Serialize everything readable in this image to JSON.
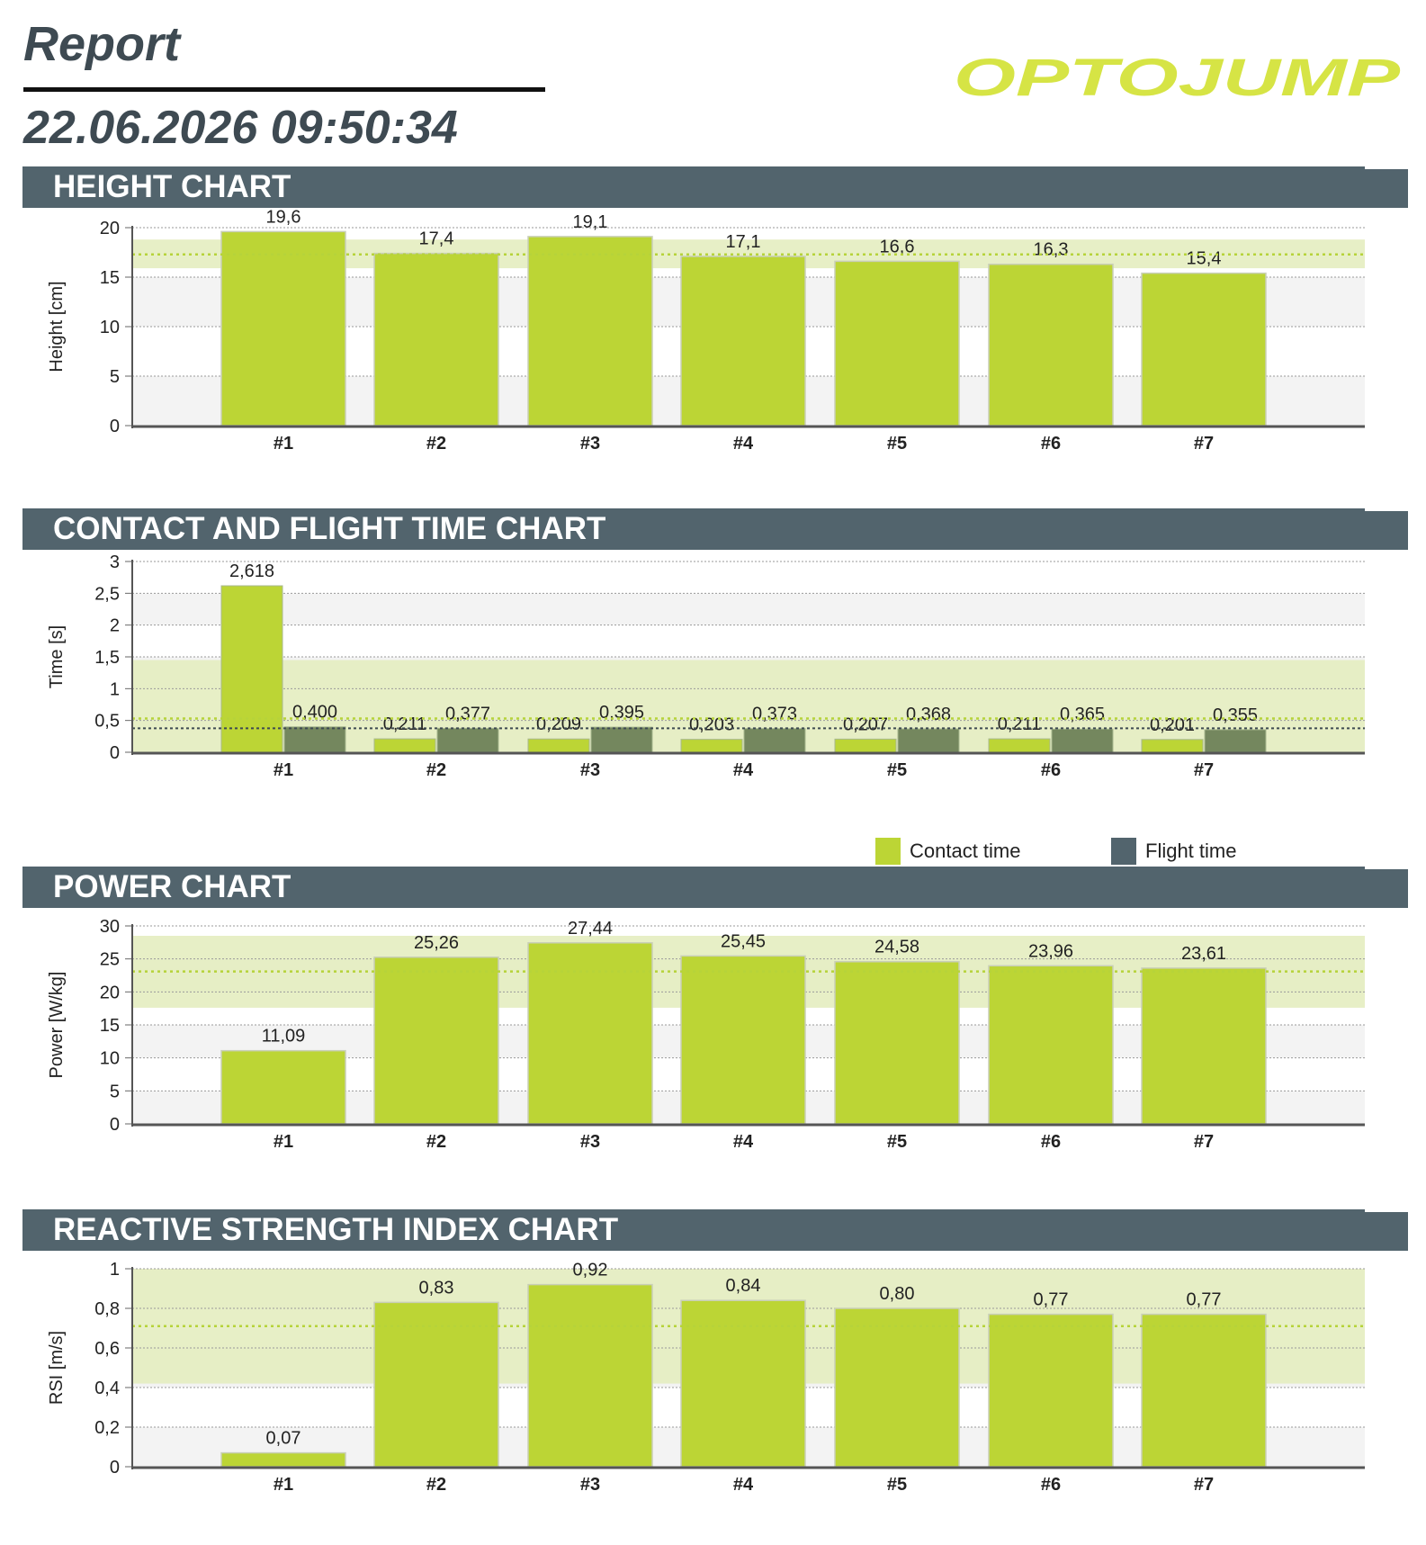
{
  "header": {
    "title": "Report",
    "date": "22.06.2026 09:50:34",
    "logo_text": "OPTOJUMP"
  },
  "colors": {
    "section_bar": "#52646d",
    "contact": "#bcd535",
    "flight": "#74875e",
    "band": "#e4edc0",
    "band_line": "#b6d33a",
    "logo": "#d6e445"
  },
  "sections": [
    {
      "title": "HEIGHT CHART"
    },
    {
      "title": "CONTACT AND FLIGHT TIME CHART"
    },
    {
      "title": "POWER CHART"
    },
    {
      "title": "REACTIVE STRENGTH INDEX CHART"
    }
  ],
  "legend": {
    "contact": "Contact time",
    "flight": "Flight time"
  },
  "chart_data": [
    {
      "type": "bar",
      "title": "HEIGHT CHART",
      "ylabel": "Height [cm]",
      "categories": [
        "#1",
        "#2",
        "#3",
        "#4",
        "#5",
        "#6",
        "#7"
      ],
      "values": [
        19.6,
        17.4,
        19.1,
        17.1,
        16.6,
        16.3,
        15.4
      ],
      "value_labels": [
        "19,6",
        "17,4",
        "19,1",
        "17,1",
        "16,6",
        "16,3",
        "15,4"
      ],
      "yticks": [
        0,
        5,
        10,
        15,
        20
      ],
      "ytick_labels": [
        "0",
        "5",
        "10",
        "15",
        "20"
      ],
      "ylim": [
        0,
        20
      ],
      "band": [
        15.9,
        18.8
      ],
      "band_mean": 17.3,
      "grid": true
    },
    {
      "type": "bar",
      "title": "CONTACT AND FLIGHT TIME CHART",
      "ylabel": "Time [s]",
      "categories": [
        "#1",
        "#2",
        "#3",
        "#4",
        "#5",
        "#6",
        "#7"
      ],
      "series": [
        {
          "name": "Contact time",
          "values": [
            2.618,
            0.211,
            0.209,
            0.203,
            0.207,
            0.211,
            0.201
          ],
          "labels": [
            "2,618",
            "0,211",
            "0,209",
            "0,203",
            "0,207",
            "0,211",
            "0,201"
          ]
        },
        {
          "name": "Flight time",
          "values": [
            0.4,
            0.377,
            0.395,
            0.373,
            0.368,
            0.365,
            0.355
          ],
          "labels": [
            "0,400",
            "0,377",
            "0,395",
            "0,373",
            "0,368",
            "0,365",
            "0,355"
          ]
        }
      ],
      "yticks": [
        0,
        0.5,
        1,
        1.5,
        2,
        2.5,
        3
      ],
      "ytick_labels": [
        "0",
        "0,5",
        "1",
        "1,5",
        "2",
        "2,5",
        "3"
      ],
      "ylim": [
        0,
        3
      ],
      "band": [
        0,
        1.45
      ],
      "band_mean": 0.53,
      "flight_mean": 0.376,
      "grid": true,
      "legend_placement": "bottom-right"
    },
    {
      "type": "bar",
      "title": "POWER CHART",
      "ylabel": "Power [W/kg]",
      "categories": [
        "#1",
        "#2",
        "#3",
        "#4",
        "#5",
        "#6",
        "#7"
      ],
      "values": [
        11.09,
        25.26,
        27.44,
        25.45,
        24.58,
        23.96,
        23.61
      ],
      "value_labels": [
        "11,09",
        "25,26",
        "27,44",
        "25,45",
        "24,58",
        "23,96",
        "23,61"
      ],
      "yticks": [
        0,
        5,
        10,
        15,
        20,
        25,
        30
      ],
      "ytick_labels": [
        "0",
        "5",
        "10",
        "15",
        "20",
        "25",
        "30"
      ],
      "ylim": [
        0,
        30
      ],
      "band": [
        17.6,
        28.5
      ],
      "band_mean": 23.1,
      "grid": true
    },
    {
      "type": "bar",
      "title": "REACTIVE STRENGTH INDEX CHART",
      "ylabel": "RSI [m/s]",
      "categories": [
        "#1",
        "#2",
        "#3",
        "#4",
        "#5",
        "#6",
        "#7"
      ],
      "values": [
        0.07,
        0.83,
        0.92,
        0.84,
        0.8,
        0.77,
        0.77
      ],
      "value_labels": [
        "0,07",
        "0,83",
        "0,92",
        "0,84",
        "0,80",
        "0,77",
        "0,77"
      ],
      "yticks": [
        0,
        0.2,
        0.4,
        0.6,
        0.8,
        1
      ],
      "ytick_labels": [
        "0",
        "0,2",
        "0,4",
        "0,6",
        "0,8",
        "1"
      ],
      "ylim": [
        0,
        1
      ],
      "band": [
        0.42,
        1.0
      ],
      "band_mean": 0.71,
      "grid": true
    }
  ]
}
